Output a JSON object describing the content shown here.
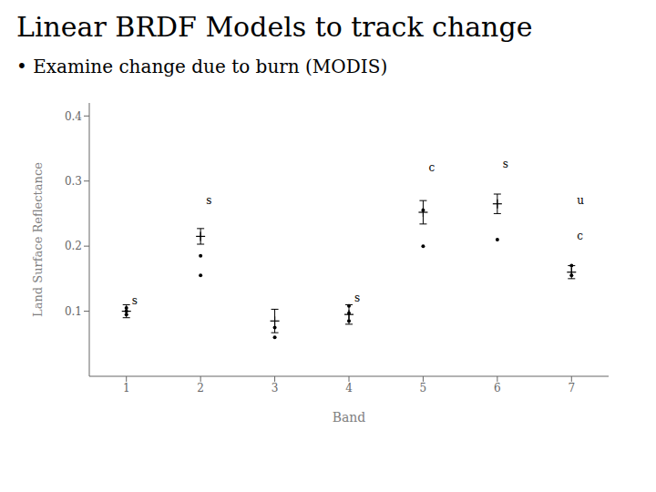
{
  "chart_data": {
    "type": "scatter",
    "title": "Linear BRDF Models to track change",
    "subtitle": "• Examine change due to burn (MODIS)",
    "x_label": "Band",
    "y_label": "Land Surface Reflectance",
    "xlim": [
      0.5,
      7.5
    ],
    "ylim": [
      0.0,
      0.42
    ],
    "xticks": [
      1,
      2,
      3,
      4,
      5,
      6,
      7
    ],
    "yticks": [
      0.1,
      0.2,
      0.3,
      0.4
    ],
    "grid": false,
    "series": [
      {
        "type": "scatter",
        "marker": "dot",
        "color": "#000000",
        "x": [
          1,
          1,
          1,
          2,
          2,
          3,
          3,
          4,
          4,
          4,
          5,
          5,
          6,
          7,
          7
        ],
        "values": [
          0.095,
          0.1,
          0.105,
          0.155,
          0.185,
          0.06,
          0.075,
          0.085,
          0.097,
          0.108,
          0.2,
          0.255,
          0.21,
          0.155,
          0.17
        ]
      },
      {
        "type": "scatter",
        "marker": "plus",
        "color": "#000000",
        "x": [
          1,
          2,
          3,
          4,
          5,
          6,
          7
        ],
        "values": [
          0.1,
          0.215,
          0.085,
          0.095,
          0.252,
          0.265,
          0.16
        ],
        "error": [
          0.01,
          0.012,
          0.018,
          0.015,
          0.018,
          0.015,
          0.01
        ]
      }
    ],
    "annotations": [
      {
        "x": 1,
        "y": 0.115,
        "text": "s"
      },
      {
        "x": 2,
        "y": 0.27,
        "text": "s"
      },
      {
        "x": 4,
        "y": 0.12,
        "text": "s"
      },
      {
        "x": 5,
        "y": 0.32,
        "text": "c"
      },
      {
        "x": 6,
        "y": 0.325,
        "text": "s"
      },
      {
        "x": 7,
        "y": 0.215,
        "text": "c"
      },
      {
        "x": 7,
        "y": 0.27,
        "text": "u"
      }
    ]
  }
}
